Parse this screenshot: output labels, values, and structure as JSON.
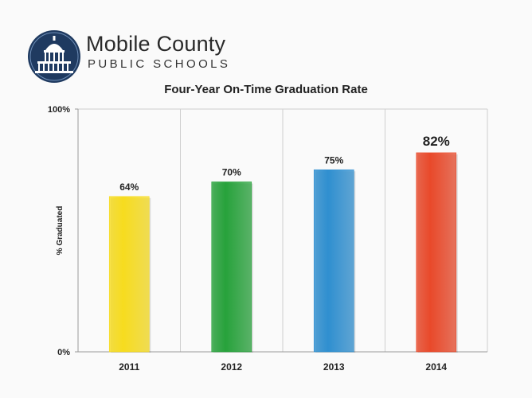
{
  "header": {
    "org_name": "Mobile County",
    "org_sub": "PUBLIC SCHOOLS"
  },
  "icons": {
    "logo": "capitol-dome-logo-icon"
  },
  "colors": {
    "logo_navy": "#1f3a60",
    "grid": "#cfcfcf"
  },
  "chart_data": {
    "type": "bar",
    "title": "Four-Year On-Time Graduation Rate",
    "xlabel": "",
    "ylabel": "% Graduated",
    "ylim": [
      0,
      100
    ],
    "yticks": [
      0,
      100
    ],
    "ytick_labels": [
      "0%",
      "100%"
    ],
    "categories": [
      "2011",
      "2012",
      "2013",
      "2014"
    ],
    "values": [
      64,
      70,
      75,
      82
    ],
    "value_labels": [
      "64%",
      "70%",
      "75%",
      "82%"
    ],
    "bar_colors": [
      "#f7dc1e",
      "#27a23b",
      "#2f8fd0",
      "#e9492a"
    ],
    "highlight_index": 3,
    "grid": true,
    "legend": "none"
  }
}
